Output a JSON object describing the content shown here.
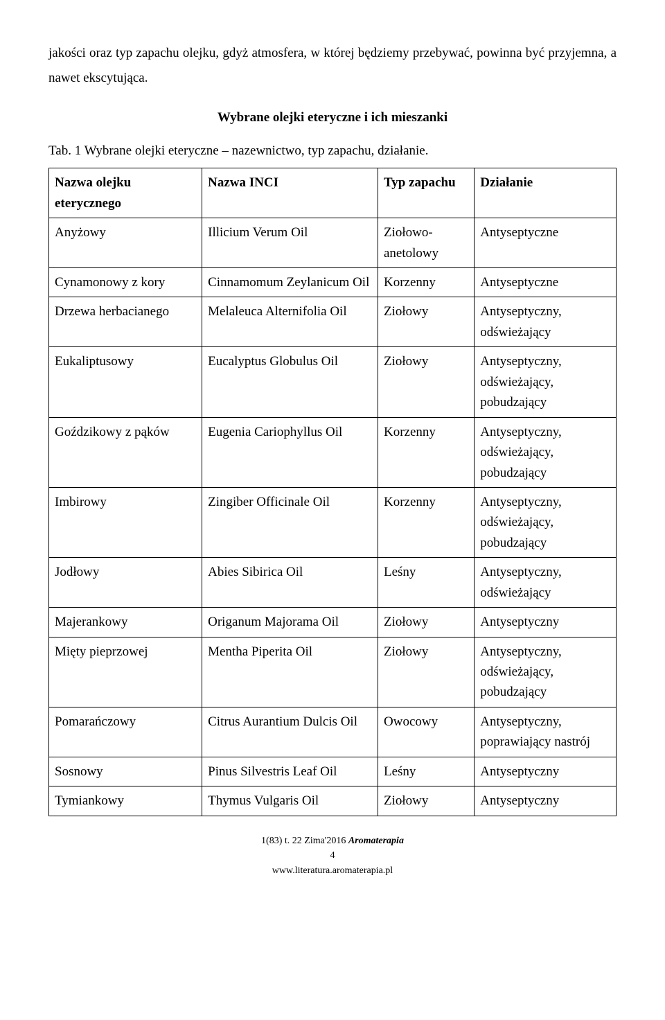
{
  "intro": "jakości oraz typ zapachu olejku, gdyż atmosfera, w której będziemy przebywać, powinna być przyjemna, a nawet ekscytująca.",
  "section_title": "Wybrane olejki eteryczne i ich mieszanki",
  "caption": "Tab. 1 Wybrane olejki eteryczne – nazewnictwo, typ zapachu, działanie.",
  "table": {
    "headers": [
      "Nazwa olejku eterycznego",
      "Nazwa INCI",
      "Typ zapachu",
      "Działanie"
    ],
    "rows": [
      [
        "Anyżowy",
        "Illicium Verum Oil",
        "Ziołowo-anetolowy",
        "Antyseptyczne"
      ],
      [
        "Cynamonowy z kory",
        "Cinnamomum Zeylanicum Oil",
        "Korzenny",
        "Antyseptyczne"
      ],
      [
        "Drzewa herbacianego",
        "Melaleuca Alternifolia Oil",
        "Ziołowy",
        "Antyseptyczny, odświeżający"
      ],
      [
        "Eukaliptusowy",
        "Eucalyptus Globulus Oil",
        "Ziołowy",
        "Antyseptyczny, odświeżający, pobudzający"
      ],
      [
        "Goździkowy z pąków",
        "Eugenia Cariophyllus Oil",
        "Korzenny",
        "Antyseptyczny, odświeżający, pobudzający"
      ],
      [
        "Imbirowy",
        "Zingiber Officinale Oil",
        "Korzenny",
        "Antyseptyczny, odświeżający, pobudzający"
      ],
      [
        "Jodłowy",
        "Abies Sibirica Oil",
        "Leśny",
        "Antyseptyczny, odświeżający"
      ],
      [
        "Majerankowy",
        "Origanum Majorama Oil",
        "Ziołowy",
        "Antyseptyczny"
      ],
      [
        "Mięty pieprzowej",
        "Mentha Piperita Oil",
        "Ziołowy",
        "Antyseptyczny, odświeżający, pobudzający"
      ],
      [
        "Pomarańczowy",
        "Citrus Aurantium Dulcis Oil",
        "Owocowy",
        "Antyseptyczny, poprawiający nastrój"
      ],
      [
        "Sosnowy",
        "Pinus Silvestris Leaf Oil",
        "Leśny",
        "Antyseptyczny"
      ],
      [
        "Tymiankowy",
        "Thymus Vulgaris Oil",
        "Ziołowy",
        "Antyseptyczny"
      ]
    ],
    "col_widths": [
      "27%",
      "31%",
      "17%",
      "25%"
    ]
  },
  "footer": {
    "issue": "1(83) t. 22 Zima'2016 ",
    "brand": "Aromaterapia",
    "page_number": "4",
    "url": "www.literatura.aromaterapia.pl"
  },
  "colors": {
    "text": "#000000",
    "background": "#ffffff",
    "border": "#000000"
  },
  "typography": {
    "body_font": "Times New Roman",
    "body_size_pt": 14,
    "line_height": 1.9
  }
}
